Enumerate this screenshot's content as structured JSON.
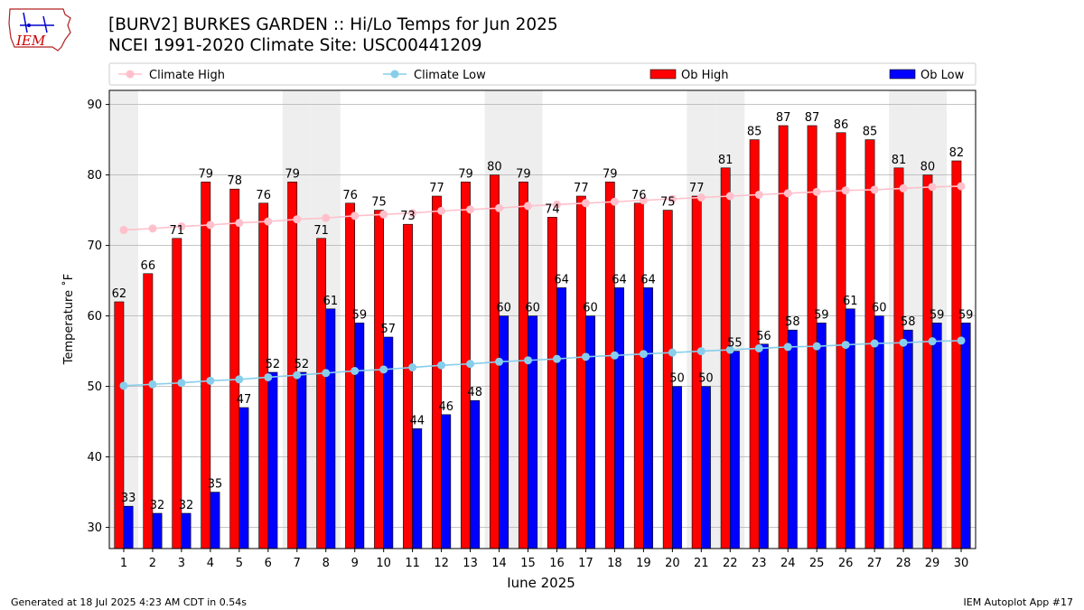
{
  "header": {
    "title_line1": "[BURV2] BURKES GARDEN :: Hi/Lo Temps for Jun 2025",
    "title_line2": "NCEI 1991-2020 Climate Site: USC00441209",
    "logo_text": "IEM"
  },
  "footer": {
    "left": "Generated at 18 Jul 2025 4:23 AM CDT in 0.54s",
    "right": "IEM Autoplot App #17"
  },
  "colors": {
    "ob_high": "#ff0000",
    "ob_low": "#0000ff",
    "climate_high": "#ffc0cb",
    "climate_low": "#87ceeb",
    "weekend_shade": "#eeeeee"
  },
  "chart_data": {
    "type": "bar",
    "title": "[BURV2] BURKES GARDEN :: Hi/Lo Temps for Jun 2025",
    "subtitle": "NCEI 1991-2020 Climate Site: USC00441209",
    "xlabel": "June 2025",
    "ylabel": "Temperature ˚F",
    "ylim": [
      27,
      92
    ],
    "yticks": [
      30,
      40,
      50,
      60,
      70,
      80,
      90
    ],
    "grid": true,
    "legend_position": "top",
    "categories": [
      "1",
      "2",
      "3",
      "4",
      "5",
      "6",
      "7",
      "8",
      "9",
      "10",
      "11",
      "12",
      "13",
      "14",
      "15",
      "16",
      "17",
      "18",
      "19",
      "20",
      "21",
      "22",
      "23",
      "24",
      "25",
      "26",
      "27",
      "28",
      "29",
      "30"
    ],
    "shaded_days": [
      "1",
      "7",
      "8",
      "14",
      "15",
      "21",
      "22",
      "28",
      "29"
    ],
    "series": [
      {
        "name": "Ob High",
        "type": "bar",
        "color": "#ff0000",
        "values": [
          62,
          66,
          71,
          79,
          78,
          76,
          79,
          71,
          76,
          75,
          73,
          77,
          79,
          80,
          79,
          74,
          77,
          79,
          76,
          75,
          77,
          81,
          85,
          87,
          87,
          86,
          85,
          81,
          80,
          82
        ]
      },
      {
        "name": "Ob Low",
        "type": "bar",
        "color": "#0000ff",
        "values": [
          33,
          32,
          32,
          35,
          47,
          52,
          52,
          61,
          59,
          57,
          44,
          46,
          48,
          60,
          60,
          64,
          60,
          64,
          64,
          50,
          50,
          55,
          56,
          58,
          59,
          61,
          60,
          58,
          59,
          59
        ]
      },
      {
        "name": "Climate High",
        "type": "line",
        "color": "#ffc0cb",
        "values": [
          72.2,
          72.4,
          72.7,
          72.9,
          73.2,
          73.4,
          73.7,
          73.9,
          74.2,
          74.4,
          74.6,
          74.9,
          75.1,
          75.3,
          75.6,
          75.8,
          76.0,
          76.2,
          76.4,
          76.6,
          76.8,
          77.0,
          77.2,
          77.4,
          77.6,
          77.8,
          77.9,
          78.1,
          78.3,
          78.4
        ]
      },
      {
        "name": "Climate Low",
        "type": "line",
        "color": "#87ceeb",
        "values": [
          50.1,
          50.3,
          50.5,
          50.8,
          51.0,
          51.3,
          51.6,
          51.9,
          52.2,
          52.4,
          52.7,
          53.0,
          53.2,
          53.5,
          53.7,
          53.9,
          54.2,
          54.4,
          54.6,
          54.8,
          55.0,
          55.2,
          55.4,
          55.6,
          55.7,
          55.9,
          56.1,
          56.2,
          56.4,
          56.5
        ]
      }
    ]
  }
}
